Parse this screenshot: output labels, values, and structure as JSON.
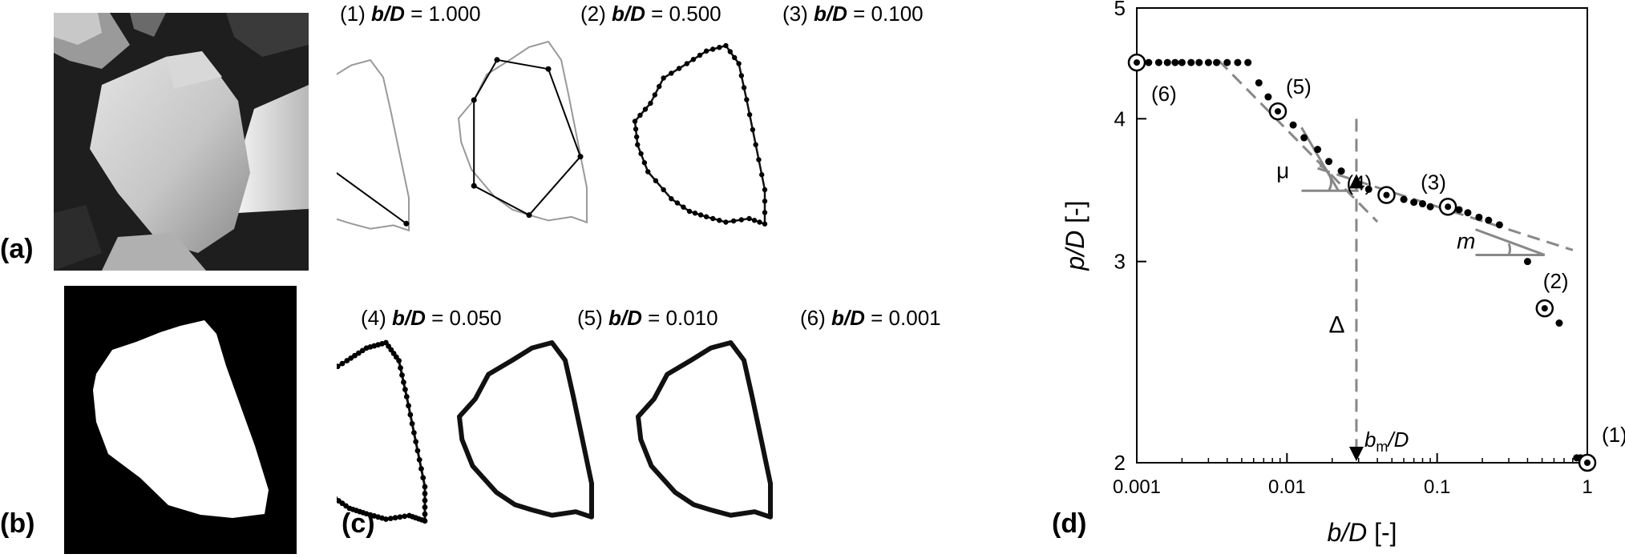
{
  "panels": {
    "a": {
      "label": "(a)"
    },
    "b": {
      "label": "(b)"
    },
    "c": {
      "label": "(c)"
    },
    "d": {
      "label": "(d)"
    }
  },
  "contours": [
    {
      "num": "(1)",
      "var": "b/D",
      "eq": "= 1.000"
    },
    {
      "num": "(2)",
      "var": "b/D",
      "eq": "= 0.500"
    },
    {
      "num": "(3)",
      "var": "b/D",
      "eq": "= 0.100"
    },
    {
      "num": "(4)",
      "var": "b/D",
      "eq": "= 0.050"
    },
    {
      "num": "(5)",
      "var": "b/D",
      "eq": "= 0.010"
    },
    {
      "num": "(6)",
      "var": "b/D",
      "eq": "= 0.001"
    }
  ],
  "chart_data": {
    "type": "scatter",
    "xlabel_var": "b/D",
    "xlabel_unit": "[-]",
    "ylabel_var": "p/D",
    "ylabel_unit": "[-]",
    "x_scale": "log",
    "y_scale": "log",
    "xlim": [
      0.001,
      1
    ],
    "ylim": [
      2,
      5
    ],
    "x_ticks": [
      {
        "value": 0.001,
        "label": "0.001"
      },
      {
        "value": 0.01,
        "label": "0.01"
      },
      {
        "value": 0.1,
        "label": "0.1"
      },
      {
        "value": 1,
        "label": "1"
      }
    ],
    "y_ticks": [
      {
        "value": 2,
        "label": "2"
      },
      {
        "value": 3,
        "label": "3"
      },
      {
        "value": 4,
        "label": "4"
      },
      {
        "value": 5,
        "label": "5"
      }
    ],
    "points": [
      {
        "x": 0.0012,
        "y": 4.48
      },
      {
        "x": 0.0014,
        "y": 4.48
      },
      {
        "x": 0.0016,
        "y": 4.48
      },
      {
        "x": 0.0018,
        "y": 4.48
      },
      {
        "x": 0.002,
        "y": 4.48
      },
      {
        "x": 0.0023,
        "y": 4.48
      },
      {
        "x": 0.0026,
        "y": 4.48
      },
      {
        "x": 0.003,
        "y": 4.48
      },
      {
        "x": 0.0034,
        "y": 4.48
      },
      {
        "x": 0.004,
        "y": 4.48
      },
      {
        "x": 0.0047,
        "y": 4.48
      },
      {
        "x": 0.0055,
        "y": 4.48
      },
      {
        "x": 0.0065,
        "y": 4.3
      },
      {
        "x": 0.0075,
        "y": 4.18
      },
      {
        "x": 0.011,
        "y": 3.95
      },
      {
        "x": 0.013,
        "y": 3.85
      },
      {
        "x": 0.016,
        "y": 3.76
      },
      {
        "x": 0.019,
        "y": 3.67
      },
      {
        "x": 0.023,
        "y": 3.6
      },
      {
        "x": 0.035,
        "y": 3.47
      },
      {
        "x": 0.06,
        "y": 3.4
      },
      {
        "x": 0.07,
        "y": 3.38
      },
      {
        "x": 0.08,
        "y": 3.37
      },
      {
        "x": 0.09,
        "y": 3.35
      },
      {
        "x": 0.14,
        "y": 3.33
      },
      {
        "x": 0.16,
        "y": 3.31
      },
      {
        "x": 0.19,
        "y": 3.28
      },
      {
        "x": 0.22,
        "y": 3.26
      },
      {
        "x": 0.26,
        "y": 3.23
      },
      {
        "x": 0.4,
        "y": 3.0
      },
      {
        "x": 0.65,
        "y": 2.65
      },
      {
        "x": 0.85,
        "y": 2.02
      },
      {
        "x": 0.9,
        "y": 2.02
      }
    ],
    "circled_points": [
      {
        "label": "(6)",
        "x": 0.001,
        "y": 4.48
      },
      {
        "label": "(5)",
        "x": 0.0087,
        "y": 4.06
      },
      {
        "label": "(4)",
        "x": 0.046,
        "y": 3.43
      },
      {
        "label": "(3)",
        "x": 0.118,
        "y": 3.35
      },
      {
        "label": "(2)",
        "x": 0.52,
        "y": 2.73
      },
      {
        "label": "(1)",
        "x": 1.0,
        "y": 2.0
      }
    ],
    "fit_lines": [
      {
        "name": "steep",
        "x": [
          0.0035,
          0.04
        ],
        "y": [
          4.5,
          3.25
        ]
      },
      {
        "name": "shallow",
        "x": [
          0.016,
          0.8
        ],
        "y": [
          3.62,
          3.07
        ]
      }
    ],
    "intersection": {
      "x": 0.029,
      "y": 3.51
    },
    "annotations": {
      "mu": "μ",
      "m": "m",
      "delta": "Δ",
      "bm_var": "b",
      "bm_sub": "m",
      "bm_suffix": "/D"
    }
  }
}
